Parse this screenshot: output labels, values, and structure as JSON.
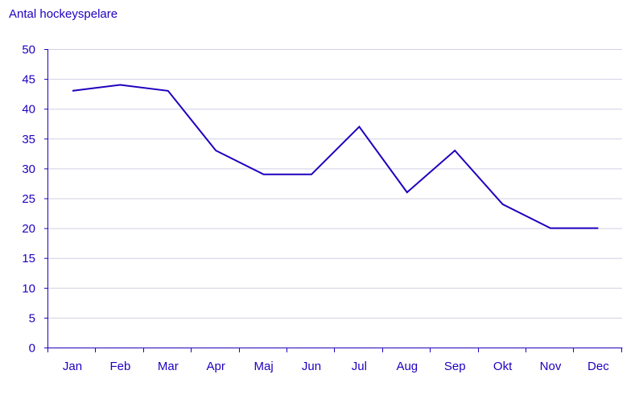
{
  "chart_data": {
    "type": "line",
    "title": "",
    "ylabel": "Antal hockeyspelare",
    "xlabel": "",
    "categories": [
      "Jan",
      "Feb",
      "Mar",
      "Apr",
      "Maj",
      "Jun",
      "Jul",
      "Aug",
      "Sep",
      "Okt",
      "Nov",
      "Dec"
    ],
    "series": [
      {
        "values": [
          43,
          44,
          43,
          33,
          29,
          29,
          37,
          26,
          33,
          24,
          20,
          20
        ],
        "color": "#1e00be"
      }
    ],
    "ylim": [
      0,
      50
    ],
    "yticks": [
      0,
      5,
      10,
      15,
      20,
      25,
      30,
      35,
      40,
      45,
      50
    ],
    "grid": "horizontal",
    "legend": "none",
    "colors": {
      "text": "#1e00be",
      "axis": "#1e00be",
      "grid": "#d0d0e6",
      "line": "#1e00be"
    }
  }
}
